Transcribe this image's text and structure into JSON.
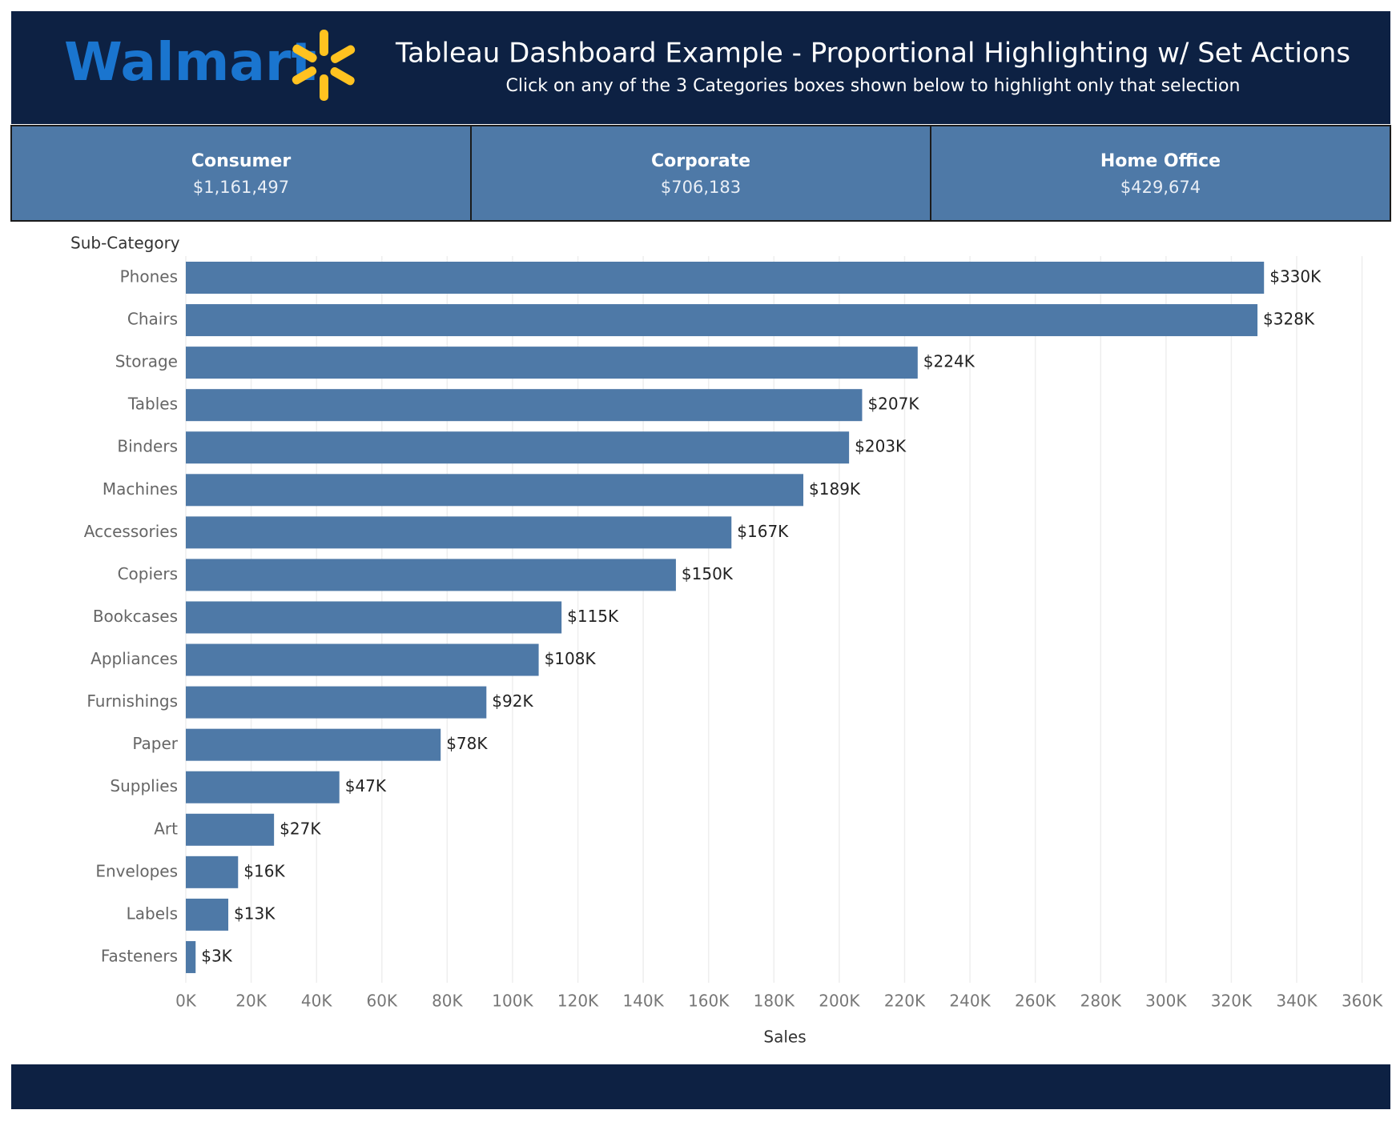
{
  "header": {
    "logo": "Walmart",
    "title": "Tableau Dashboard Example - Proportional Highlighting w/ Set Actions",
    "subtitle": "Click on any of the 3 Categories boxes shown below to highlight only that selection"
  },
  "segments": [
    {
      "name": "Consumer",
      "value": "$1,161,497"
    },
    {
      "name": "Corporate",
      "value": "$706,183"
    },
    {
      "name": "Home Office",
      "value": "$429,674"
    }
  ],
  "chart_data": {
    "type": "hbar",
    "y_label": "Sub-Category",
    "x_label": "Sales",
    "color": "#4e79a7",
    "categories": [
      "Phones",
      "Chairs",
      "Storage",
      "Tables",
      "Binders",
      "Machines",
      "Accessories",
      "Copiers",
      "Bookcases",
      "Appliances",
      "Furnishings",
      "Paper",
      "Supplies",
      "Art",
      "Envelopes",
      "Labels",
      "Fasteners"
    ],
    "values": [
      330000,
      328000,
      224000,
      207000,
      203000,
      189000,
      167000,
      150000,
      115000,
      108000,
      92000,
      78000,
      47000,
      27000,
      16000,
      13000,
      3000
    ],
    "value_labels": [
      "$330K",
      "$328K",
      "$224K",
      "$207K",
      "$203K",
      "$189K",
      "$167K",
      "$150K",
      "$115K",
      "$108K",
      "$92K",
      "$78K",
      "$47K",
      "$27K",
      "$16K",
      "$13K",
      "$3K"
    ],
    "xlim": [
      0,
      365000
    ],
    "xticks": [
      {
        "value": 0,
        "label": "0K"
      },
      {
        "value": 20000,
        "label": "20K"
      },
      {
        "value": 40000,
        "label": "40K"
      },
      {
        "value": 60000,
        "label": "60K"
      },
      {
        "value": 80000,
        "label": "80K"
      },
      {
        "value": 100000,
        "label": "100K"
      },
      {
        "value": 120000,
        "label": "120K"
      },
      {
        "value": 140000,
        "label": "140K"
      },
      {
        "value": 160000,
        "label": "160K"
      },
      {
        "value": 180000,
        "label": "180K"
      },
      {
        "value": 200000,
        "label": "200K"
      },
      {
        "value": 220000,
        "label": "220K"
      },
      {
        "value": 240000,
        "label": "240K"
      },
      {
        "value": 260000,
        "label": "260K"
      },
      {
        "value": 280000,
        "label": "280K"
      },
      {
        "value": 300000,
        "label": "300K"
      },
      {
        "value": 320000,
        "label": "320K"
      },
      {
        "value": 340000,
        "label": "340K"
      },
      {
        "value": 360000,
        "label": "360K"
      }
    ],
    "grid": true
  }
}
